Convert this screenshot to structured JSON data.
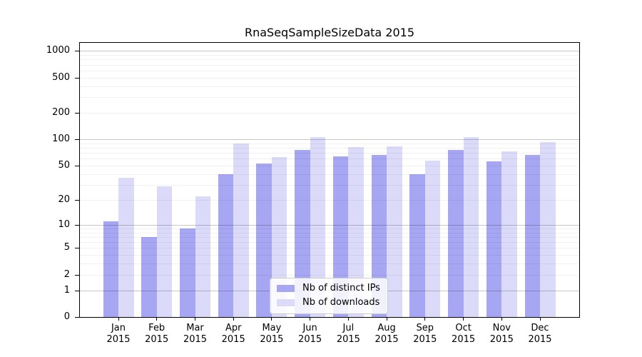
{
  "chart_data": {
    "type": "bar",
    "title": "RnaSeqSampleSizeData 2015",
    "categories": [
      "Jan 2015",
      "Feb 2015",
      "Mar 2015",
      "Apr 2015",
      "May 2015",
      "Jun 2015",
      "Jul 2015",
      "Aug 2015",
      "Sep 2015",
      "Oct 2015",
      "Nov 2015",
      "Dec 2015"
    ],
    "series": [
      {
        "name": "Nb of distinct IPs",
        "color": "#a6a6f2",
        "values": [
          11,
          7,
          9,
          40,
          53,
          75,
          64,
          66,
          40,
          75,
          56,
          66
        ]
      },
      {
        "name": "Nb of downloads",
        "color": "#dbdbf9",
        "values": [
          36,
          29,
          22,
          89,
          63,
          106,
          82,
          83,
          57,
          106,
          73,
          93
        ]
      }
    ],
    "yscale": "log1p",
    "yticks": [
      0,
      1,
      2,
      5,
      10,
      20,
      50,
      100,
      200,
      500,
      1000
    ],
    "ylim": [
      0,
      1250
    ],
    "xlabel": "",
    "ylabel": "",
    "grid": "horizontal major and minor, drawn over bars",
    "legend_position": "lower center"
  }
}
